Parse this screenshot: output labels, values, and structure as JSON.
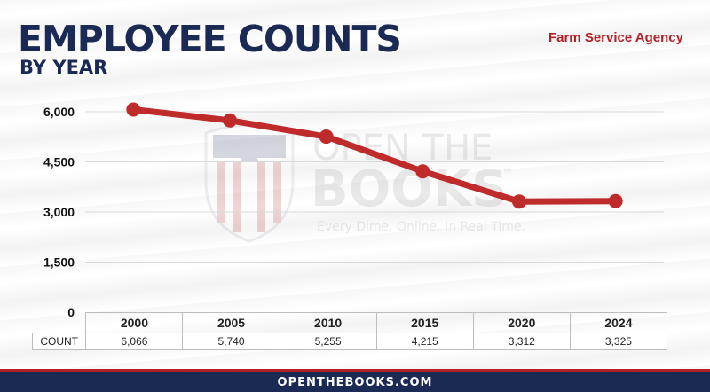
{
  "header": {
    "title": "EMPLOYEE COUNTS",
    "subtitle": "BY YEAR",
    "agency": "Farm Service Agency"
  },
  "watermark": {
    "line1": "OPEN THE",
    "line2": "BOOKS",
    "tm": "™",
    "tagline": "Every Dime. Online. In Real Time."
  },
  "table": {
    "row_label": "COUNT"
  },
  "footer": {
    "site": "OPENTHEBOOKS.COM"
  },
  "colors": {
    "navy": "#1b2a55",
    "red": "#b32025",
    "line": "#bf2a2a"
  },
  "chart_data": {
    "type": "line",
    "categories": [
      "2000",
      "2005",
      "2010",
      "2015",
      "2020",
      "2024"
    ],
    "series": [
      {
        "values": [
          6066,
          5740,
          5255,
          4215,
          3312,
          3325
        ]
      }
    ],
    "yticks": [
      "0",
      "1,500",
      "3,000",
      "4,500",
      "6,000"
    ],
    "ylim": [
      0,
      6000
    ],
    "grid": true,
    "value_labels": [
      "6,066",
      "5,740",
      "5,255",
      "4,215",
      "3,312",
      "3,325"
    ]
  }
}
